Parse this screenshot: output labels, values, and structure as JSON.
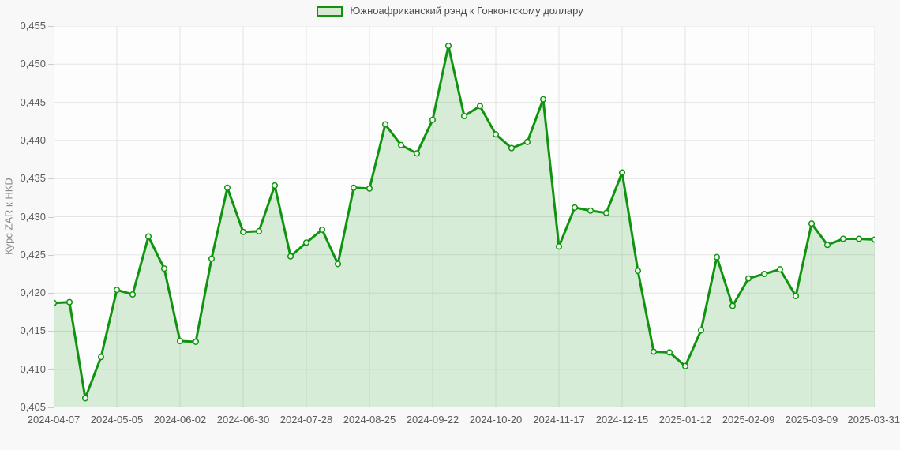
{
  "legend": {
    "label": "Южноафриканский рэнд к Гонконгскому доллару"
  },
  "y_axis": {
    "title": "Курс ZAR к HKD",
    "tick_labels": [
      "0,455",
      "0,450",
      "0,445",
      "0,440",
      "0,435",
      "0,430",
      "0,425",
      "0,420",
      "0,415",
      "0,410",
      "0,405"
    ]
  },
  "x_axis": {
    "tick_labels": [
      "2024-04-07",
      "2024-05-05",
      "2024-06-02",
      "2024-06-30",
      "2024-07-28",
      "2024-08-25",
      "2024-09-22",
      "2024-10-20",
      "2024-11-17",
      "2024-12-15",
      "2025-01-12",
      "2025-02-09",
      "2025-03-09",
      "2025-03-31"
    ]
  },
  "chart_data": {
    "type": "area",
    "title": "Южноафриканский рэнд к Гонконгскому доллару",
    "ylabel": "Курс ZAR к HKD",
    "xlabel": "",
    "ylim": [
      0.405,
      0.455
    ],
    "y_tick_step": 0.005,
    "x_label_every": 4,
    "grid": true,
    "legend_position": "top-center",
    "markers": true,
    "x": [
      "2024-04-07",
      "2024-04-14",
      "2024-04-21",
      "2024-04-28",
      "2024-05-05",
      "2024-05-12",
      "2024-05-19",
      "2024-05-26",
      "2024-06-02",
      "2024-06-09",
      "2024-06-16",
      "2024-06-23",
      "2024-06-30",
      "2024-07-07",
      "2024-07-14",
      "2024-07-21",
      "2024-07-28",
      "2024-08-04",
      "2024-08-11",
      "2024-08-18",
      "2024-08-25",
      "2024-09-01",
      "2024-09-08",
      "2024-09-15",
      "2024-09-22",
      "2024-09-29",
      "2024-10-06",
      "2024-10-13",
      "2024-10-20",
      "2024-10-27",
      "2024-11-03",
      "2024-11-10",
      "2024-11-17",
      "2024-11-24",
      "2024-12-01",
      "2024-12-08",
      "2024-12-15",
      "2024-12-22",
      "2024-12-29",
      "2025-01-05",
      "2025-01-12",
      "2025-01-19",
      "2025-01-26",
      "2025-02-02",
      "2025-02-09",
      "2025-02-16",
      "2025-02-23",
      "2025-03-02",
      "2025-03-09",
      "2025-03-16",
      "2025-03-23",
      "2025-03-30",
      "2025-03-31"
    ],
    "values": [
      0.4187,
      0.4188,
      0.4062,
      0.4116,
      0.4204,
      0.4198,
      0.4274,
      0.4232,
      0.4137,
      0.4136,
      0.4245,
      0.4338,
      0.428,
      0.4281,
      0.4341,
      0.4248,
      0.4266,
      0.4283,
      0.4238,
      0.4338,
      0.4337,
      0.4421,
      0.4394,
      0.4383,
      0.4427,
      0.4524,
      0.4432,
      0.4445,
      0.4408,
      0.439,
      0.4398,
      0.4454,
      0.4261,
      0.4312,
      0.4308,
      0.4305,
      0.4358,
      0.4229,
      0.4123,
      0.4122,
      0.4104,
      0.4151,
      0.4247,
      0.4183,
      0.4219,
      0.4225,
      0.4231,
      0.4196,
      0.4291,
      0.4263,
      0.4271,
      0.4271,
      0.427
    ]
  },
  "style": {
    "line_color": "#109410",
    "fill_opacity": 0.16,
    "swatch_fill": "#d9ead3",
    "marker_fill": "#f5faf2",
    "grid_color": "#e4e4e4",
    "axis_color": "#c9c9c9",
    "plot_bg": "#fdfdfd",
    "page_bg": "#f8f8f8",
    "tick_text_color": "#5a5a5a",
    "legend_text_color": "#4d4d4d",
    "y_title_color": "#878787"
  }
}
